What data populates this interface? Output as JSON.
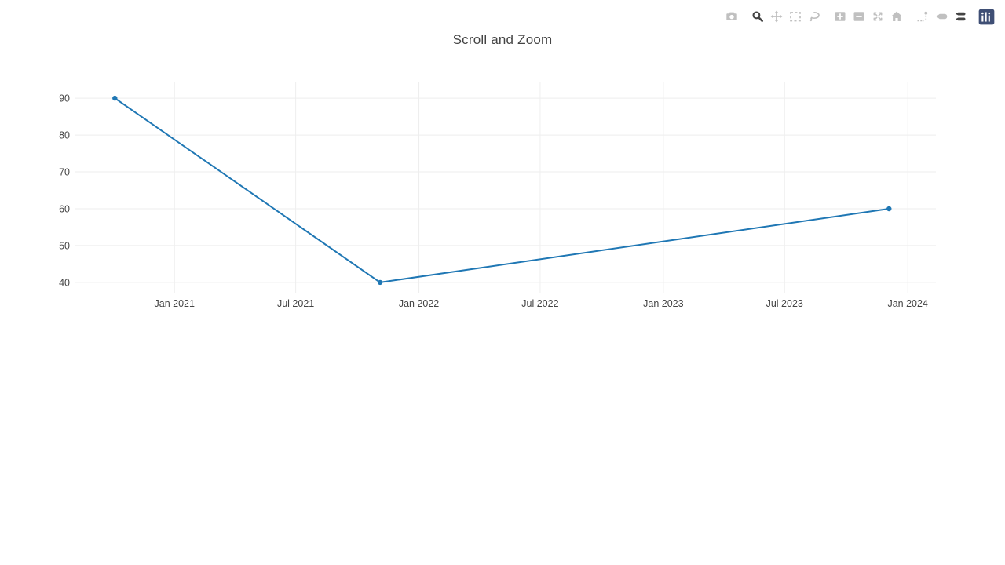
{
  "chart_data": {
    "type": "line",
    "title": "Scroll and Zoom",
    "x": [
      "2020-10-04",
      "2021-11-04",
      "2023-12-04"
    ],
    "y": [
      90,
      40,
      60
    ],
    "x_tick_dates": [
      "2021-01-01",
      "2021-07-01",
      "2022-01-01",
      "2022-07-01",
      "2023-01-01",
      "2023-07-01",
      "2024-01-01"
    ],
    "x_tick_labels": [
      "Jan 2021",
      "Jul 2021",
      "Jan 2022",
      "Jul 2022",
      "Jan 2023",
      "Jul 2023",
      "Jan 2024"
    ],
    "y_ticks": [
      40,
      50,
      60,
      70,
      80,
      90
    ],
    "xlim": [
      "2020-08-06",
      "2024-02-12"
    ],
    "ylim": [
      37.2,
      94.5
    ],
    "grid": true,
    "legend_position": "none",
    "line_color": "#1f77b4",
    "marker_color": "#1f77b4",
    "grid_color": "#eeeeee",
    "text_color": "#444444",
    "bg_color": "#ffffff"
  },
  "modebar": {
    "active_color": "#444444",
    "inactive_color": "#c0c0c0",
    "logo_color": "#3f4f75",
    "groups": [
      {
        "buttons": [
          {
            "name": "download-plot-button",
            "icon": "camera-icon",
            "active": false
          }
        ]
      },
      {
        "buttons": [
          {
            "name": "zoom-button",
            "icon": "magnifier-icon",
            "active": true
          },
          {
            "name": "pan-button",
            "icon": "pan-arrows-icon",
            "active": false
          },
          {
            "name": "box-select-button",
            "icon": "box-select-icon",
            "active": false
          },
          {
            "name": "lasso-select-button",
            "icon": "lasso-icon",
            "active": false
          }
        ]
      },
      {
        "buttons": [
          {
            "name": "zoom-in-button",
            "icon": "plus-square-icon",
            "active": false
          },
          {
            "name": "zoom-out-button",
            "icon": "minus-square-icon",
            "active": false
          },
          {
            "name": "autoscale-button",
            "icon": "autoscale-icon",
            "active": false
          },
          {
            "name": "reset-axes-button",
            "icon": "home-icon",
            "active": false
          }
        ]
      },
      {
        "buttons": [
          {
            "name": "toggle-spikelines-button",
            "icon": "spikelines-icon",
            "active": false
          },
          {
            "name": "hover-closest-button",
            "icon": "single-tooltip-icon",
            "active": false
          },
          {
            "name": "hover-compare-button",
            "icon": "double-tooltip-icon",
            "active": true
          }
        ]
      },
      {
        "buttons": [
          {
            "name": "plotly-logo-button",
            "icon": "plotly-logo-icon",
            "active": false
          }
        ]
      }
    ]
  }
}
